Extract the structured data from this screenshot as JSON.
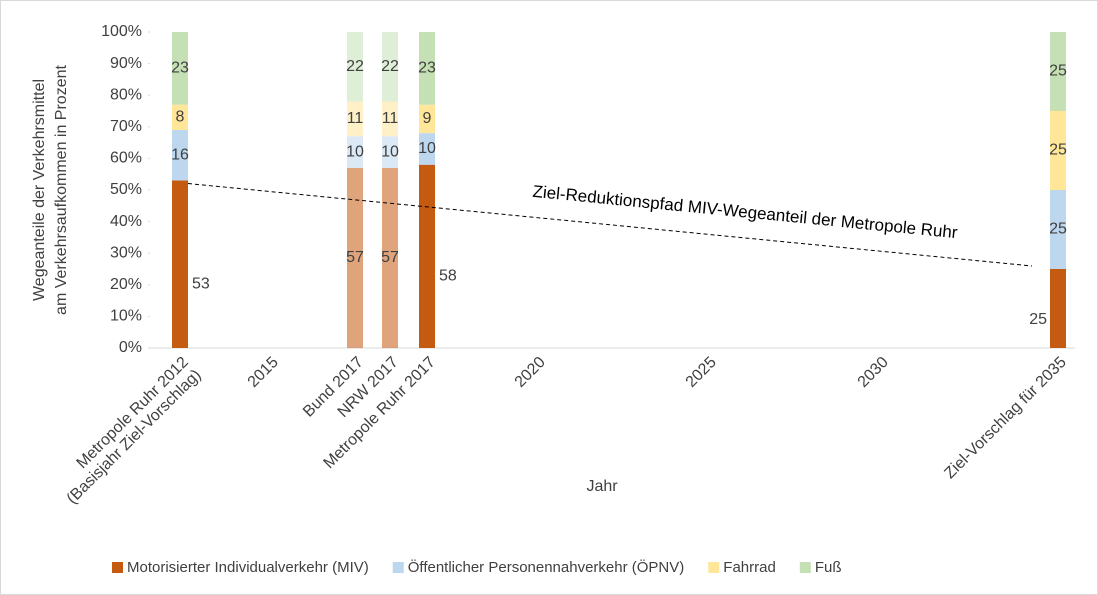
{
  "chart_data": {
    "type": "stacked_bar",
    "y_label": [
      "Wegeanteile der Verkehrsmittel",
      "am Verkehrsaufkommen in Prozent"
    ],
    "x_label": "Jahr",
    "categories": [
      [
        "Metropole Ruhr 2012",
        "(Basisjahr Ziel-Vorschlag)"
      ],
      "2015",
      "Bund 2017",
      "NRW 2017",
      "Metropole Ruhr 2017",
      "2020",
      "2025",
      "2030",
      "Ziel-Vorschlag für 2035"
    ],
    "opacity": [
      1,
      null,
      0.55,
      0.55,
      1,
      null,
      null,
      null,
      1
    ],
    "series": [
      {
        "name": "Motorisierter Individualverkehr (MIV)",
        "color": "#c55a11",
        "values": [
          53,
          null,
          57,
          57,
          58,
          null,
          null,
          null,
          25
        ]
      },
      {
        "name": "Öffentlicher Personennahverkehr (ÖPNV)",
        "color": "#bdd7ee",
        "values": [
          16,
          null,
          10,
          10,
          10,
          null,
          null,
          null,
          25
        ]
      },
      {
        "name": "Fahrrad",
        "color": "#ffe699",
        "values": [
          8,
          null,
          11,
          11,
          9,
          null,
          null,
          null,
          25
        ]
      },
      {
        "name": "Fuß",
        "color": "#c5e0b4",
        "values": [
          23,
          null,
          22,
          22,
          23,
          null,
          null,
          null,
          25
        ]
      }
    ],
    "annotation": "Ziel-Reduktionspfad MIV-Wegeanteil der Metropole Ruhr",
    "ylim": [
      0,
      100
    ],
    "yticks": [
      {
        "value": 0,
        "label": "0%"
      },
      {
        "value": 10,
        "label": "10%"
      },
      {
        "value": 20,
        "label": "20%"
      },
      {
        "value": 30,
        "label": "30%"
      },
      {
        "value": 40,
        "label": "40%"
      },
      {
        "value": 50,
        "label": "50%"
      },
      {
        "value": 60,
        "label": "60%"
      },
      {
        "value": 70,
        "label": "70%"
      },
      {
        "value": 80,
        "label": "80%"
      },
      {
        "value": 90,
        "label": "90%"
      },
      {
        "value": 100,
        "label": "100%"
      }
    ],
    "grid": false,
    "legend": "bottom"
  }
}
